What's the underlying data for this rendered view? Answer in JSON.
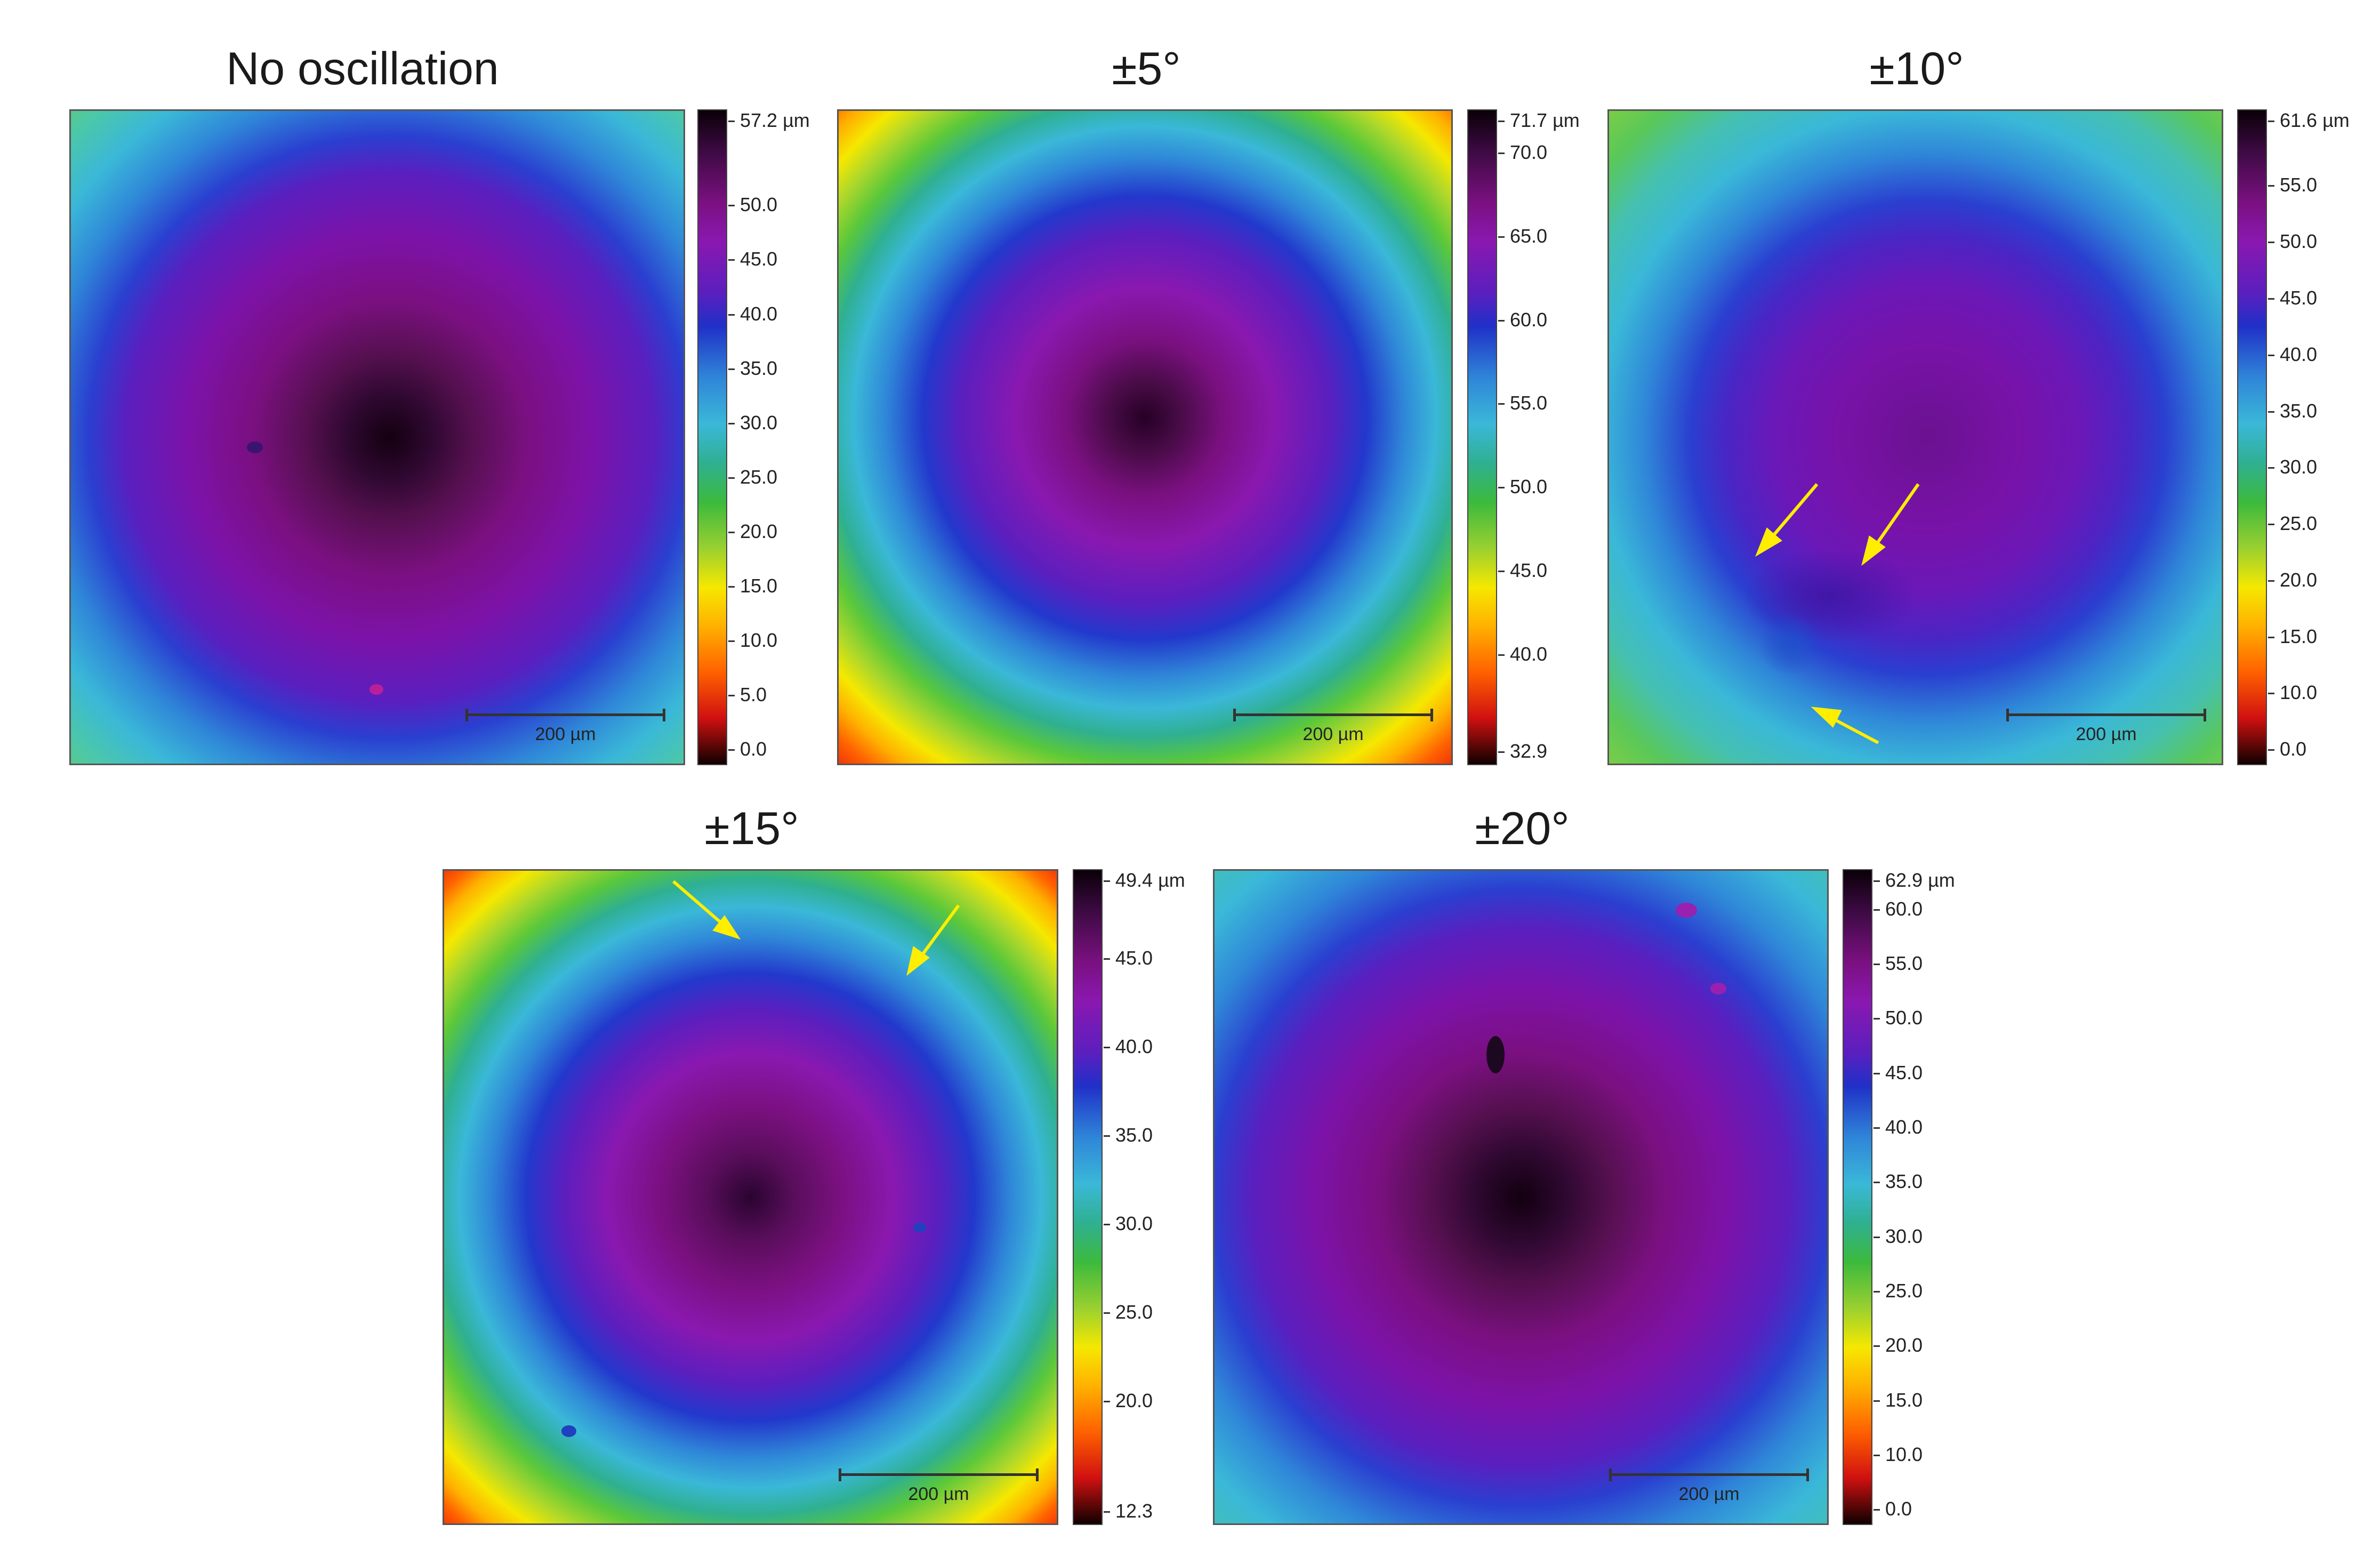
{
  "panels": [
    {
      "title": "No oscillation",
      "max_label": "57.2 µm",
      "ticks": [
        "50.0",
        "45.0",
        "40.0",
        "35.0",
        "30.0",
        "25.0",
        "20.0",
        "15.0",
        "10.0",
        "5.0",
        "0.0"
      ],
      "scale_label": "200 µm"
    },
    {
      "title": "±5°",
      "max_label": "71.7 µm",
      "ticks": [
        "70.0",
        "65.0",
        "60.0",
        "55.0",
        "50.0",
        "45.0",
        "40.0"
      ],
      "min_label": "32.9",
      "scale_label": "200 µm"
    },
    {
      "title": "±10°",
      "max_label": "61.6 µm",
      "ticks": [
        "55.0",
        "50.0",
        "45.0",
        "40.0",
        "35.0",
        "30.0",
        "25.0",
        "20.0",
        "15.0",
        "10.0",
        "0.0"
      ],
      "scale_label": "200 µm"
    },
    {
      "title": "±15°",
      "max_label": "49.4 µm",
      "ticks": [
        "45.0",
        "40.0",
        "35.0",
        "30.0",
        "25.0",
        "20.0"
      ],
      "min_label": "12.3",
      "scale_label": "200 µm"
    },
    {
      "title": "±20°",
      "max_label": "62.9 µm",
      "ticks": [
        "60.0",
        "55.0",
        "50.0",
        "45.0",
        "40.0",
        "35.0",
        "30.0",
        "25.0",
        "20.0",
        "15.0",
        "10.0",
        "0.0"
      ],
      "scale_label": "200 µm"
    }
  ],
  "colors": {
    "arrow": "#ffee00",
    "border": "#555555"
  }
}
